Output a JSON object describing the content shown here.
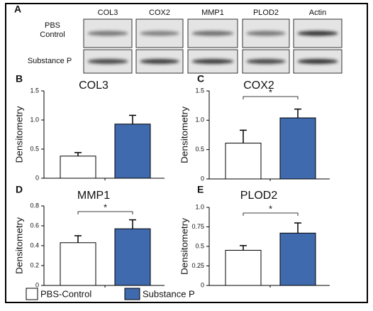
{
  "panel_a": {
    "label": "A",
    "columns": [
      "COL3",
      "COX2",
      "MMP1",
      "PLOD2",
      "Actin"
    ],
    "rows": [
      "PBS Control",
      "Substance P"
    ]
  },
  "legend": [
    {
      "name": "PBS-Control",
      "color": "#ffffff"
    },
    {
      "name": "Substance P",
      "color": "#3f6aae"
    }
  ],
  "chart_data": [
    {
      "type": "bar",
      "panel": "B",
      "title": "COL3",
      "y_label": "Densitometry",
      "values": [
        0.38,
        0.93
      ],
      "errors": [
        0.06,
        0.15
      ],
      "ylim": [
        0,
        1.5
      ],
      "yticks": [
        0,
        0.5,
        {
          "value": 1,
          "label": "1.0"
        },
        1.5
      ]
    },
    {
      "type": "bar",
      "panel": "C",
      "title": "COX2",
      "y_label": "Densitometry",
      "values": [
        0.61,
        1.04
      ],
      "errors": [
        0.22,
        0.15
      ],
      "significance": "*",
      "ylim": [
        0,
        1.5
      ],
      "yticks": [
        0,
        0.5,
        {
          "value": 1,
          "label": "1.0"
        },
        1.5
      ]
    },
    {
      "type": "bar",
      "panel": "D",
      "title": "MMP1",
      "y_label": "Densitometry",
      "values": [
        0.43,
        0.57
      ],
      "errors": [
        0.07,
        0.09
      ],
      "significance": "*",
      "ylim": [
        0,
        0.8
      ],
      "yticks": [
        0,
        0.2,
        0.4,
        0.6,
        0.8
      ]
    },
    {
      "type": "bar",
      "panel": "E",
      "title": "PLOD2",
      "y_label": "Densitometry",
      "values": [
        0.45,
        0.67
      ],
      "errors": [
        0.06,
        0.13
      ],
      "significance": "*",
      "ylim": [
        0,
        1
      ],
      "yticks": [
        0,
        0.25,
        0.5,
        0.75,
        {
          "value": 1,
          "label": "1.0"
        }
      ]
    }
  ]
}
